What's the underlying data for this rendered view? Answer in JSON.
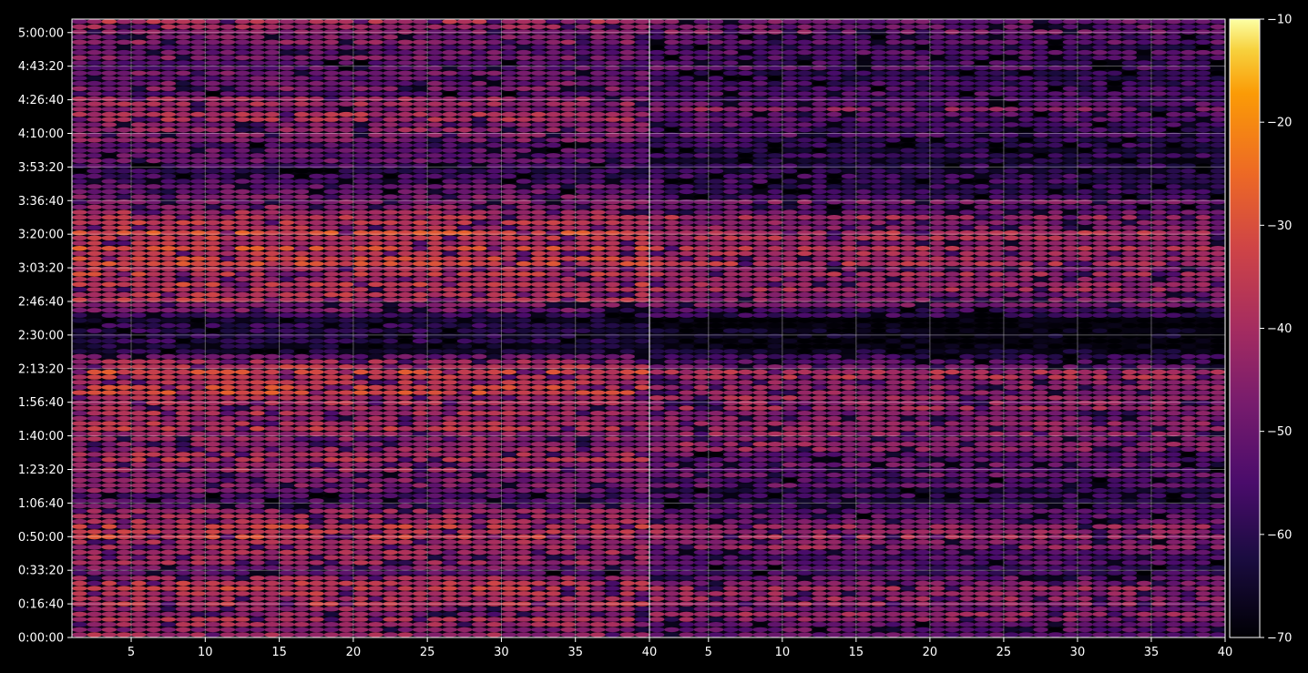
{
  "chart_data": {
    "type": "heatmap",
    "layout": "two panels side by side sharing the y axis, with a colorbar on the right",
    "background": "#000000",
    "colormap": "inferno",
    "grid": true,
    "panels": [
      {
        "name": "",
        "xlim": [
          1,
          40
        ],
        "xticks": [
          "5",
          "10",
          "15",
          "20",
          "25",
          "30",
          "35",
          "40"
        ],
        "xtick_values": [
          5,
          10,
          15,
          20,
          25,
          30,
          35,
          40
        ]
      },
      {
        "name": "",
        "xlim": [
          1,
          40
        ],
        "xticks": [
          "5",
          "10",
          "15",
          "20",
          "25",
          "30",
          "35",
          "40"
        ],
        "xtick_values": [
          5,
          10,
          15,
          20,
          25,
          30,
          35,
          40
        ]
      }
    ],
    "y_axis": {
      "unit": "seconds",
      "ylim": [
        0,
        18400
      ],
      "yticks": [
        "0:00:00",
        "0:16:40",
        "0:33:20",
        "0:50:00",
        "1:06:40",
        "1:23:20",
        "1:40:00",
        "1:56:40",
        "2:13:20",
        "2:30:00",
        "2:46:40",
        "3:03:20",
        "3:20:00",
        "3:36:40",
        "3:53:20",
        "4:10:00",
        "4:26:40",
        "4:43:20",
        "5:00:00"
      ],
      "ytick_values": [
        0,
        1000,
        2000,
        3000,
        4000,
        5000,
        6000,
        7000,
        8000,
        9000,
        10000,
        11000,
        12000,
        13000,
        14000,
        15000,
        16000,
        17000,
        18000
      ]
    },
    "colorbar": {
      "vmin": -70,
      "vmax": -10,
      "ticks": [
        "−70",
        "−60",
        "−50",
        "−40",
        "−30",
        "−20",
        "−10"
      ],
      "tick_values": [
        -70,
        -60,
        -50,
        -40,
        -30,
        -20,
        -10
      ]
    },
    "approx_band_levels_by_time": [
      {
        "t": 300,
        "level": -42
      },
      {
        "t": 1450,
        "level": -33
      },
      {
        "t": 1850,
        "level": -48
      },
      {
        "t": 2650,
        "level": -40
      },
      {
        "t": 3200,
        "level": -33
      },
      {
        "t": 4150,
        "level": -52
      },
      {
        "t": 5250,
        "level": -42
      },
      {
        "t": 6650,
        "level": -38
      },
      {
        "t": 7350,
        "level": -35
      },
      {
        "t": 7950,
        "level": -34
      },
      {
        "t": 8550,
        "level": -58
      },
      {
        "t": 9350,
        "level": -62
      },
      {
        "t": 10050,
        "level": -38
      },
      {
        "t": 10750,
        "level": -37
      },
      {
        "t": 11350,
        "level": -34
      },
      {
        "t": 11850,
        "level": -33
      },
      {
        "t": 12450,
        "level": -37
      },
      {
        "t": 13650,
        "level": -54
      },
      {
        "t": 14450,
        "level": -52
      },
      {
        "t": 15250,
        "level": -45
      },
      {
        "t": 15650,
        "level": -40
      },
      {
        "t": 16350,
        "level": -50
      },
      {
        "t": 17550,
        "level": -48
      },
      {
        "t": 17950,
        "level": -42
      }
    ]
  }
}
